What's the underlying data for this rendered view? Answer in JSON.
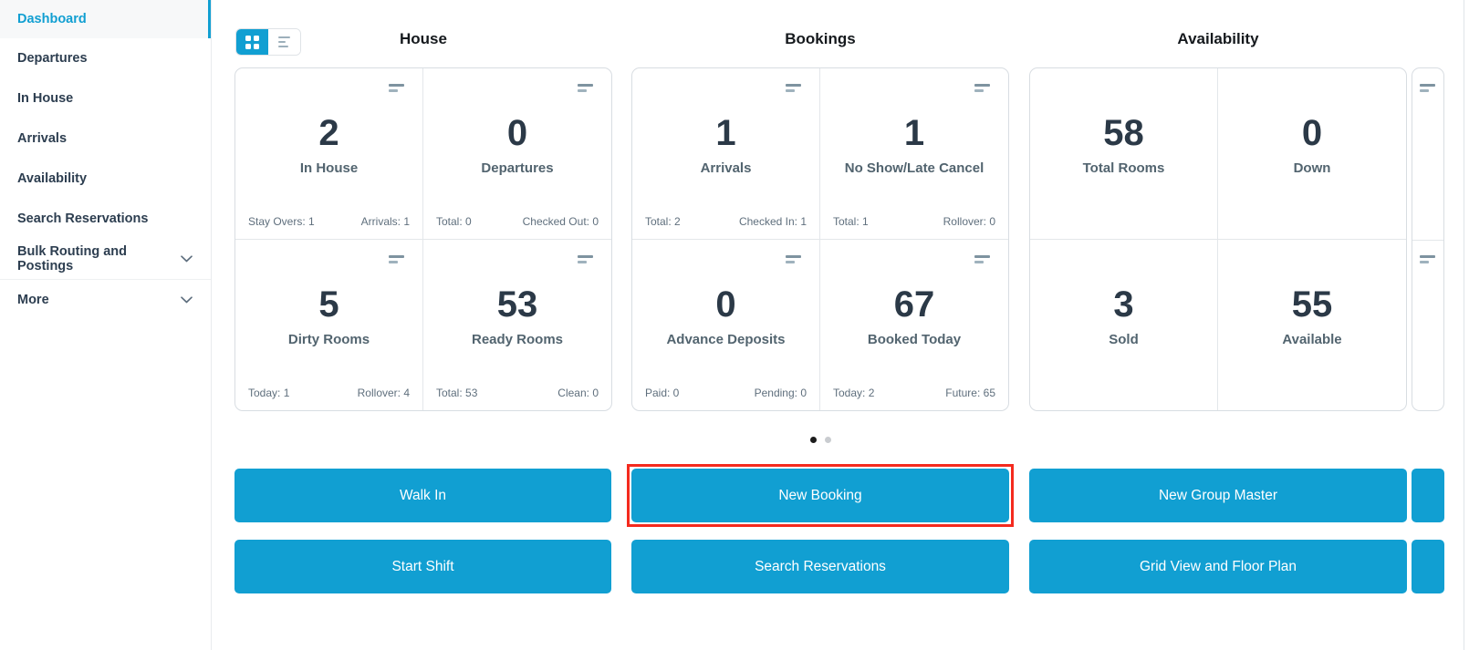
{
  "sidebar": {
    "items": [
      {
        "label": "Dashboard",
        "active": true
      },
      {
        "label": "Departures"
      },
      {
        "label": "In House"
      },
      {
        "label": "Arrivals"
      },
      {
        "label": "Availability"
      },
      {
        "label": "Search Reservations"
      },
      {
        "label": "Bulk Routing and Postings",
        "expandable": true
      },
      {
        "label": "More",
        "expandable": true,
        "divider_above": true
      }
    ]
  },
  "view_toggle": {
    "options": [
      {
        "name": "grid-view",
        "icon": "grid-icon",
        "active": true
      },
      {
        "name": "list-view",
        "icon": "list-icon",
        "active": false
      }
    ]
  },
  "groups": [
    {
      "title": "House",
      "cards": [
        {
          "value": "2",
          "label": "In House",
          "menu_icon": true,
          "footer_left": "Stay Overs: 1",
          "footer_right": "Arrivals: 1"
        },
        {
          "value": "0",
          "label": "Departures",
          "menu_icon": true,
          "footer_left": "Total: 0",
          "footer_right": "Checked Out: 0"
        },
        {
          "value": "5",
          "label": "Dirty Rooms",
          "menu_icon": true,
          "footer_left": "Today: 1",
          "footer_right": "Rollover: 4"
        },
        {
          "value": "53",
          "label": "Ready Rooms",
          "menu_icon": true,
          "footer_left": "Total: 53",
          "footer_right": "Clean: 0"
        }
      ]
    },
    {
      "title": "Bookings",
      "cards": [
        {
          "value": "1",
          "label": "Arrivals",
          "menu_icon": true,
          "footer_left": "Total: 2",
          "footer_right": "Checked In: 1"
        },
        {
          "value": "1",
          "label": "No Show/Late Cancel",
          "menu_icon": true,
          "footer_left": "Total: 1",
          "footer_right": "Rollover: 0"
        },
        {
          "value": "0",
          "label": "Advance Deposits",
          "menu_icon": true,
          "footer_left": "Paid: 0",
          "footer_right": "Pending: 0"
        },
        {
          "value": "67",
          "label": "Booked Today",
          "menu_icon": true,
          "footer_left": "Today: 2",
          "footer_right": "Future: 65"
        }
      ]
    },
    {
      "title": "Availability",
      "cards": [
        {
          "value": "58",
          "label": "Total Rooms"
        },
        {
          "value": "0",
          "label": "Down"
        },
        {
          "value": "3",
          "label": "Sold"
        },
        {
          "value": "55",
          "label": "Available"
        }
      ]
    }
  ],
  "carousel": {
    "dot_count": 2,
    "active_dot": 0,
    "next_page_peek": true
  },
  "action_buttons": [
    {
      "label": "Walk In",
      "row": 0,
      "col": 0
    },
    {
      "label": "New Booking",
      "row": 0,
      "col": 1,
      "highlighted": true
    },
    {
      "label": "New Group Master",
      "row": 0,
      "col": 2
    },
    {
      "label": "Start Shift",
      "row": 1,
      "col": 0
    },
    {
      "label": "Search Reservations",
      "row": 1,
      "col": 1
    },
    {
      "label": "Grid View and Floor Plan",
      "row": 1,
      "col": 2
    }
  ],
  "colors": {
    "accent": "#119fd2",
    "annotation_red": "#f42a1e",
    "stat_number": "#2b3947",
    "stat_label": "#52646f",
    "footer_text": "#5f6f7d",
    "sidebar_text": "#2d3e50"
  }
}
